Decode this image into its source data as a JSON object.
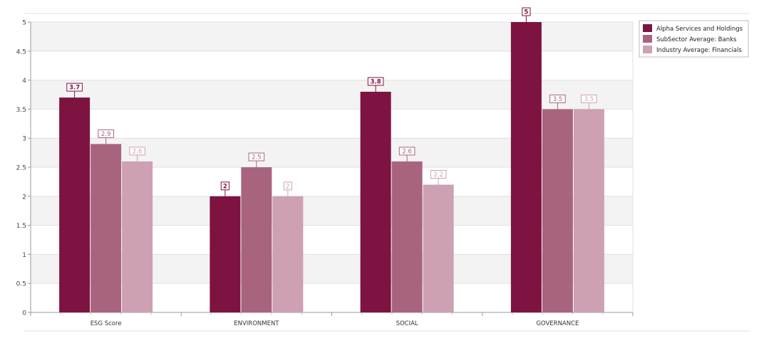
{
  "chart_data": {
    "type": "bar",
    "title": "",
    "xlabel": "",
    "ylabel": "",
    "categories": [
      "ESG Score",
      "ENVIRONMENT",
      "SOCIAL",
      "GOVERNANCE"
    ],
    "series": [
      {
        "name": "Alpha Services and Holdings",
        "color": "#7d1340",
        "values": [
          3.7,
          2,
          3.8,
          5
        ]
      },
      {
        "name": "SubSector Average: Banks",
        "color": "#a8647f",
        "values": [
          2.9,
          2.5,
          2.6,
          3.5
        ]
      },
      {
        "name": "Industry Average: Financials",
        "color": "#cda0b3",
        "values": [
          2.6,
          2,
          2.2,
          3.5
        ]
      }
    ],
    "ylim": [
      0,
      5
    ],
    "yticks": [
      "0",
      "0.5",
      "1",
      "1.5",
      "2",
      "2.5",
      "3",
      "3.5",
      "4",
      "4.5",
      "5"
    ],
    "grid": true,
    "banded_background": true,
    "legend_position": "top-right",
    "data_labels": true
  }
}
